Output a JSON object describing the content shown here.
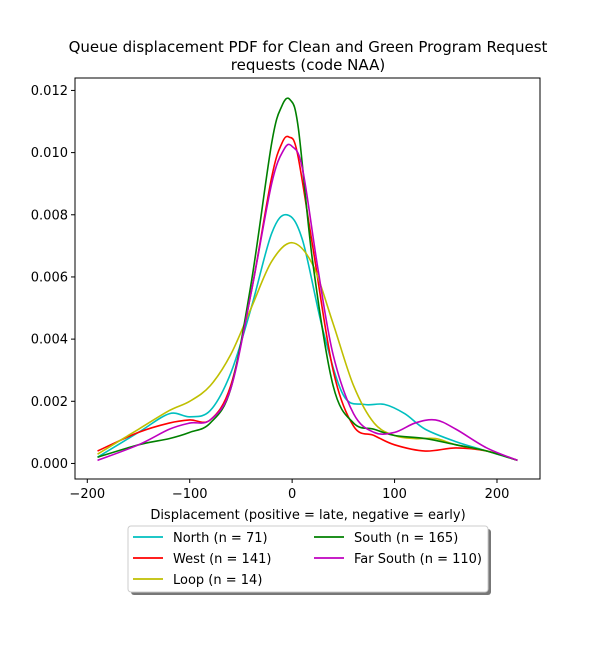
{
  "chart_data": {
    "type": "line",
    "title_lines": [
      "Queue displacement PDF for Clean and Green Program Request",
      "requests (code NAA)"
    ],
    "xlabel": "Displacement (positive = late, negative = early)",
    "ylabel": "",
    "xlim": [
      -212,
      242
    ],
    "ylim": [
      -0.0005,
      0.0124
    ],
    "x_ticks": [
      -200,
      -100,
      0,
      100,
      200
    ],
    "x_tick_labels": [
      "−200",
      "−100",
      "0",
      "100",
      "200"
    ],
    "y_ticks": [
      0.0,
      0.002,
      0.004,
      0.006,
      0.008,
      0.01,
      0.012
    ],
    "y_tick_labels": [
      "0.000",
      "0.002",
      "0.004",
      "0.006",
      "0.008",
      "0.010",
      "0.012"
    ],
    "grid": false,
    "legend_position": "bottom, below axes (2 columns)",
    "series": [
      {
        "name": "North (n = 71)",
        "color": "#00bfbf",
        "x": [
          -190,
          -150,
          -120,
          -100,
          -80,
          -60,
          -40,
          -20,
          -5,
          10,
          30,
          50,
          70,
          90,
          110,
          130,
          160,
          190,
          220
        ],
        "y": [
          0.0002,
          0.001,
          0.0016,
          0.0015,
          0.0017,
          0.0029,
          0.005,
          0.0074,
          0.008,
          0.0072,
          0.0043,
          0.0022,
          0.0019,
          0.0019,
          0.0016,
          0.0011,
          0.0007,
          0.0004,
          0.0001
        ]
      },
      {
        "name": "West (n = 141)",
        "color": "#ff0000",
        "x": [
          -190,
          -150,
          -120,
          -100,
          -80,
          -60,
          -40,
          -20,
          -10,
          -3,
          5,
          20,
          40,
          60,
          80,
          100,
          130,
          160,
          190,
          220
        ],
        "y": [
          0.0004,
          0.001,
          0.0013,
          0.0014,
          0.0014,
          0.0025,
          0.0055,
          0.0092,
          0.0103,
          0.0105,
          0.01,
          0.007,
          0.003,
          0.0012,
          0.0009,
          0.0006,
          0.0004,
          0.0005,
          0.0004,
          0.0001
        ]
      },
      {
        "name": "Loop (n = 14)",
        "color": "#bfbf00",
        "x": [
          -190,
          -150,
          -120,
          -100,
          -80,
          -60,
          -40,
          -20,
          0,
          20,
          40,
          60,
          80,
          100,
          120,
          140,
          160,
          190,
          220
        ],
        "y": [
          0.0003,
          0.0011,
          0.0017,
          0.002,
          0.0025,
          0.0035,
          0.005,
          0.0065,
          0.0071,
          0.0064,
          0.0045,
          0.0025,
          0.0013,
          0.0009,
          0.0008,
          0.0008,
          0.0006,
          0.0004,
          0.0001
        ]
      },
      {
        "name": "South (n = 165)",
        "color": "#008000",
        "x": [
          -190,
          -150,
          -120,
          -100,
          -80,
          -60,
          -40,
          -20,
          -10,
          -2,
          6,
          20,
          40,
          60,
          80,
          100,
          130,
          160,
          190,
          220
        ],
        "y": [
          0.0002,
          0.0006,
          0.0008,
          0.001,
          0.0013,
          0.0024,
          0.0058,
          0.0103,
          0.0115,
          0.0117,
          0.0108,
          0.0065,
          0.0025,
          0.0013,
          0.0011,
          0.0009,
          0.0008,
          0.0006,
          0.0004,
          0.0001
        ]
      },
      {
        "name": "Far South (n = 110)",
        "color": "#bf00bf",
        "x": [
          -190,
          -150,
          -120,
          -100,
          -80,
          -60,
          -40,
          -20,
          -8,
          0,
          10,
          25,
          40,
          60,
          80,
          100,
          120,
          140,
          160,
          190,
          220
        ],
        "y": [
          0.0001,
          0.0006,
          0.0011,
          0.0013,
          0.0014,
          0.0024,
          0.0055,
          0.009,
          0.0101,
          0.0102,
          0.0095,
          0.0063,
          0.0035,
          0.0016,
          0.001,
          0.001,
          0.0013,
          0.0014,
          0.0011,
          0.0005,
          0.0001
        ]
      }
    ]
  }
}
